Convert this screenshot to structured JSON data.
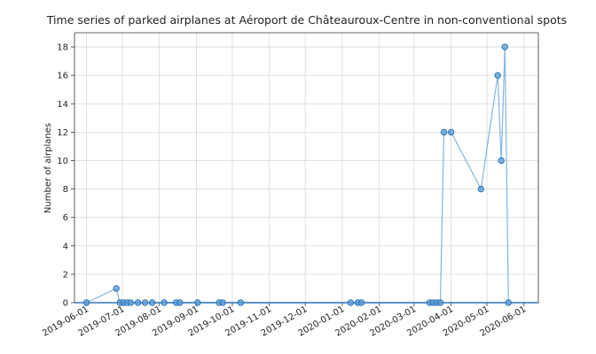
{
  "chart_data": {
    "type": "line",
    "title": "Time series of parked airplanes at Aéroport de Châteauroux-Centre in non-conventional spots",
    "xlabel": "",
    "ylabel": "Number of airplanes",
    "x_is_date": true,
    "xlim": [
      "2019-05-22",
      "2020-06-13"
    ],
    "ylim": [
      0,
      19
    ],
    "grid": true,
    "legend": "none",
    "yticks": [
      0,
      2,
      4,
      6,
      8,
      10,
      12,
      14,
      16,
      18
    ],
    "xticks": [
      "2019-06-01",
      "2019-07-01",
      "2019-08-01",
      "2019-09-01",
      "2019-10-01",
      "2019-11-01",
      "2019-12-01",
      "2020-01-01",
      "2020-02-01",
      "2020-03-01",
      "2020-04-01",
      "2020-05-01",
      "2020-06-01"
    ],
    "series": [
      {
        "color": "#5b9bd5",
        "x": [
          "2019-06-01",
          "2019-06-26",
          "2019-06-29",
          "2019-07-02",
          "2019-07-05",
          "2019-07-08",
          "2019-07-14",
          "2019-07-20",
          "2019-07-26",
          "2019-08-05",
          "2019-08-15",
          "2019-08-18",
          "2019-09-02",
          "2019-09-20",
          "2019-09-23",
          "2019-10-08",
          "2020-01-08",
          "2020-01-14",
          "2020-01-17",
          "2020-03-14",
          "2020-03-17",
          "2020-03-20",
          "2020-03-23",
          "2020-03-26",
          "2020-04-01",
          "2020-04-26",
          "2020-05-10",
          "2020-05-13",
          "2020-05-16",
          "2020-05-19"
        ],
        "y": [
          0,
          1,
          0,
          0,
          0,
          0,
          0,
          0,
          0,
          0,
          0,
          0,
          0,
          0,
          0,
          0,
          0,
          0,
          0,
          0,
          0,
          0,
          0,
          12,
          12,
          8,
          16,
          10,
          18,
          0
        ]
      }
    ]
  }
}
